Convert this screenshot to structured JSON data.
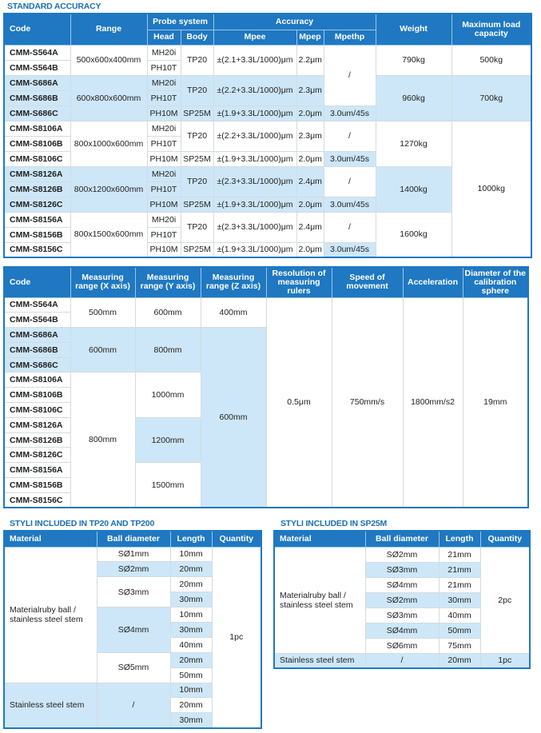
{
  "accuracy": {
    "title": "STANDARD ACCURACY",
    "header": {
      "code": "Code",
      "range": "Range",
      "probe": "Probe system",
      "head": "Head",
      "body": "Body",
      "accuracy": "Accuracy",
      "mpee": "Mpee",
      "mpep": "Mpep",
      "mpethp": "Mpethp",
      "weight": "Weight",
      "max": "Maximum load capacity"
    },
    "codes": [
      "CMM-S564A",
      "CMM-S564B",
      "CMM-S686A",
      "CMM-S686B",
      "CMM-S686C",
      "CMM-S8106A",
      "CMM-S8106B",
      "CMM-S8106C",
      "CMM-S8126A",
      "CMM-S8126B",
      "CMM-S8126C",
      "CMM-S8156A",
      "CMM-S8156B",
      "CMM-S8156C"
    ],
    "heads": [
      "MH20i",
      "PH10T",
      "MH20i",
      "PH10T",
      "PH10M",
      "MH20i",
      "PH10T",
      "PH10M",
      "MH20i",
      "PH10T",
      "PH10M",
      "MH20i",
      "PH10T",
      "PH10M"
    ],
    "groups": [
      {
        "range": "500x600x400mm",
        "tp_body": "TP20",
        "tp_mpee": "±(2.1+3.3L/1000)μm",
        "tp_mpep": "2.2μm",
        "weight": "790kg"
      },
      {
        "range": "600x800x600mm",
        "tp_body": "TP20",
        "tp_mpee": "±(2.2+3.3L/1000)μm",
        "tp_mpep": "2.3μm",
        "c_body": "SP25M",
        "c_mpee": "±(1.9+3.3L/1000)μm",
        "c_mpep": "2.0μm",
        "c_mpethp": "3.0um/45s",
        "weight": "960kg"
      },
      {
        "range": "800x1000x600mm",
        "tp_body": "TP20",
        "tp_mpee": "±(2.2+3.3L/1000)μm",
        "tp_mpep": "2.3μm",
        "c_body": "SP25M",
        "c_mpee": "±(1.9+3.3L/1000)μm",
        "c_mpep": "2.0μm",
        "c_mpethp": "3.0um/45s",
        "weight": "1270kg"
      },
      {
        "range": "800x1200x600mm",
        "tp_body": "TP20",
        "tp_mpee": "±(2.3+3.3L/1000)μm",
        "tp_mpep": "2.4μm",
        "c_body": "SP25M",
        "c_mpee": "±(1.9+3.3L/1000)μm",
        "c_mpep": "2.0μm",
        "c_mpethp": "3.0um/45s",
        "weight": "1400kg"
      },
      {
        "range": "800x1500x600mm",
        "tp_body": "TP20",
        "tp_mpee": "±(2.3+3.3L/1000)μm",
        "tp_mpep": "2.4μm",
        "c_body": "SP25M",
        "c_mpee": "±(1.9+3.3L/1000)μm",
        "c_mpep": "2.0μm",
        "c_mpethp": "3.0um/45s",
        "weight": "1600kg"
      }
    ],
    "slash": "/",
    "max": [
      "500kg",
      "700kg",
      "1000kg"
    ]
  },
  "specs": {
    "header": {
      "code": "Code",
      "x": "Measuring range (X axis)",
      "y": "Measuring range (Y axis)",
      "z": "Measuring range (Z axis)",
      "res": "Resolution of measuring rulers",
      "speed": "Speed of movement",
      "acc": "Acceleration",
      "dia": "Diameter of the calibration sphere"
    },
    "x": [
      "500mm",
      "600mm",
      "800mm"
    ],
    "y": [
      "600mm",
      "800mm",
      "1000mm",
      "1200mm",
      "1500mm"
    ],
    "z": [
      "400mm",
      "600mm"
    ],
    "res": "0.5μm",
    "speed": "750mm/s",
    "acc": "1800mm/s2",
    "dia": "19mm"
  },
  "styli_tp20": {
    "title": "STYLI INCLUDED IN TP20 AND TP200",
    "header": {
      "material": "Material",
      "ball": "Ball diameter",
      "length": "Length",
      "qty": "Quantity"
    },
    "material1": "Materialruby ball / stainless steel stem",
    "material2": "Stainless steel stem",
    "balls": [
      "SØ1mm",
      "SØ2mm",
      "SØ3mm",
      "SØ4mm",
      "SØ5mm",
      "/"
    ],
    "lengths": [
      "10mm",
      "20mm",
      "20mm",
      "30mm",
      "10mm",
      "30mm",
      "40mm",
      "20mm",
      "50mm",
      "10mm",
      "20mm",
      "30mm"
    ],
    "qty": "1pc"
  },
  "styli_sp25m": {
    "title": "STYLI INCLUDED IN SP25M",
    "header": {
      "material": "Material",
      "ball": "Ball diameter",
      "length": "Length",
      "qty": "Quantity"
    },
    "material1": "Materialruby ball / stainless steel stem",
    "balls": [
      "SØ2mm",
      "SØ3mm",
      "SØ4mm",
      "SØ2mm",
      "SØ3mm",
      "SØ4mm",
      "SØ6mm"
    ],
    "lengths": [
      "21mm",
      "21mm",
      "21mm",
      "30mm",
      "40mm",
      "50mm",
      "75mm"
    ],
    "qty": "2pc",
    "stem": {
      "material": "Stainless steel stem",
      "ball": "/",
      "length": "20mm",
      "qty": "1pc"
    }
  }
}
